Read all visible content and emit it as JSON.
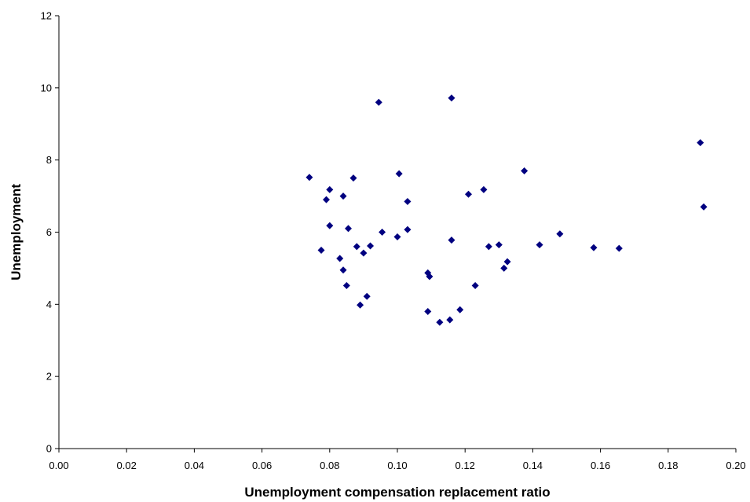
{
  "chart_data": {
    "type": "scatter",
    "title": "",
    "xlabel": "Unemployment compensation replacement ratio",
    "ylabel": "Unemployment",
    "xlim": [
      0,
      0.2
    ],
    "ylim": [
      0,
      12
    ],
    "x_ticks": [
      "0.00",
      "0.02",
      "0.04",
      "0.06",
      "0.08",
      "0.10",
      "0.12",
      "0.14",
      "0.16",
      "0.18",
      "0.20"
    ],
    "y_ticks": [
      "0",
      "2",
      "4",
      "6",
      "8",
      "10",
      "12"
    ],
    "grid": false,
    "legend": "none",
    "marker": "diamond",
    "marker_color": "#000080",
    "series": [
      {
        "points": [
          [
            0.074,
            7.52
          ],
          [
            0.0775,
            5.5
          ],
          [
            0.079,
            6.9
          ],
          [
            0.08,
            7.18
          ],
          [
            0.08,
            6.18
          ],
          [
            0.083,
            5.27
          ],
          [
            0.084,
            4.95
          ],
          [
            0.084,
            7.0
          ],
          [
            0.085,
            4.52
          ],
          [
            0.0855,
            6.1
          ],
          [
            0.087,
            7.5
          ],
          [
            0.088,
            5.6
          ],
          [
            0.089,
            3.98
          ],
          [
            0.09,
            5.42
          ],
          [
            0.091,
            4.22
          ],
          [
            0.092,
            5.62
          ],
          [
            0.0945,
            9.6
          ],
          [
            0.0955,
            6.0
          ],
          [
            0.1,
            5.87
          ],
          [
            0.1005,
            7.62
          ],
          [
            0.103,
            6.85
          ],
          [
            0.103,
            6.07
          ],
          [
            0.109,
            4.87
          ],
          [
            0.1095,
            4.77
          ],
          [
            0.109,
            3.8
          ],
          [
            0.1125,
            3.5
          ],
          [
            0.1155,
            3.57
          ],
          [
            0.116,
            9.72
          ],
          [
            0.116,
            5.78
          ],
          [
            0.1185,
            3.85
          ],
          [
            0.121,
            7.05
          ],
          [
            0.123,
            4.52
          ],
          [
            0.1255,
            7.18
          ],
          [
            0.127,
            5.6
          ],
          [
            0.13,
            5.65
          ],
          [
            0.1315,
            5.0
          ],
          [
            0.1325,
            5.18
          ],
          [
            0.1375,
            7.7
          ],
          [
            0.142,
            5.65
          ],
          [
            0.148,
            5.95
          ],
          [
            0.158,
            5.57
          ],
          [
            0.1655,
            5.55
          ],
          [
            0.1895,
            8.48
          ],
          [
            0.1905,
            6.7
          ]
        ]
      }
    ]
  }
}
